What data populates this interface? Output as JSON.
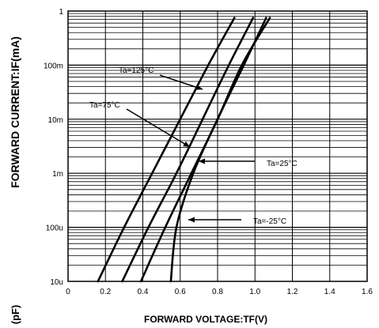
{
  "chart_data": {
    "type": "line",
    "title": "",
    "xlabel": "FORWARD VOLTAGE:TF(V)",
    "ylabel": "FORWARD CURRENT:IF(mA)",
    "xlim": [
      0,
      1.6
    ],
    "x_ticks": [
      "0",
      "0.2",
      "0.4",
      "0.6",
      "0.8",
      "1.0",
      "1.2",
      "1.4",
      "1.6"
    ],
    "y_scale": "log",
    "ylim_mA": [
      1e-05,
      1
    ],
    "y_ticks": [
      "10u",
      "100u",
      "1m",
      "10m",
      "100m",
      "1"
    ],
    "grid": true,
    "series": [
      {
        "name": "Ta=125°C",
        "x_V": [
          0.16,
          0.3,
          0.45,
          0.6,
          0.75,
          0.89
        ],
        "y_mA": [
          1e-05,
          0.0001,
          0.001,
          0.01,
          0.1,
          0.75
        ]
      },
      {
        "name": "Ta=75°C",
        "x_V": [
          0.29,
          0.43,
          0.58,
          0.72,
          0.86,
          0.99
        ],
        "y_mA": [
          1e-05,
          0.0001,
          0.001,
          0.01,
          0.1,
          0.75
        ]
      },
      {
        "name": "Ta=25°C",
        "x_V": [
          0.39,
          0.52,
          0.66,
          0.8,
          0.93,
          1.08
        ],
        "y_mA": [
          1e-05,
          0.0001,
          0.001,
          0.01,
          0.1,
          0.75
        ]
      },
      {
        "name": "Ta=-25°C",
        "x_V": [
          0.55,
          0.58,
          0.67,
          0.8,
          0.94,
          1.06
        ],
        "y_mA": [
          1e-05,
          0.0001,
          0.001,
          0.01,
          0.1,
          0.75
        ]
      }
    ]
  },
  "annotations": [
    {
      "text": "Ta=125°C",
      "series": 0
    },
    {
      "text": "Ta=75°C",
      "series": 1
    },
    {
      "text": "Ta=25°C",
      "series": 2
    },
    {
      "text": "Ta=-25°C",
      "series": 3
    }
  ],
  "corner_label": "(pF)"
}
